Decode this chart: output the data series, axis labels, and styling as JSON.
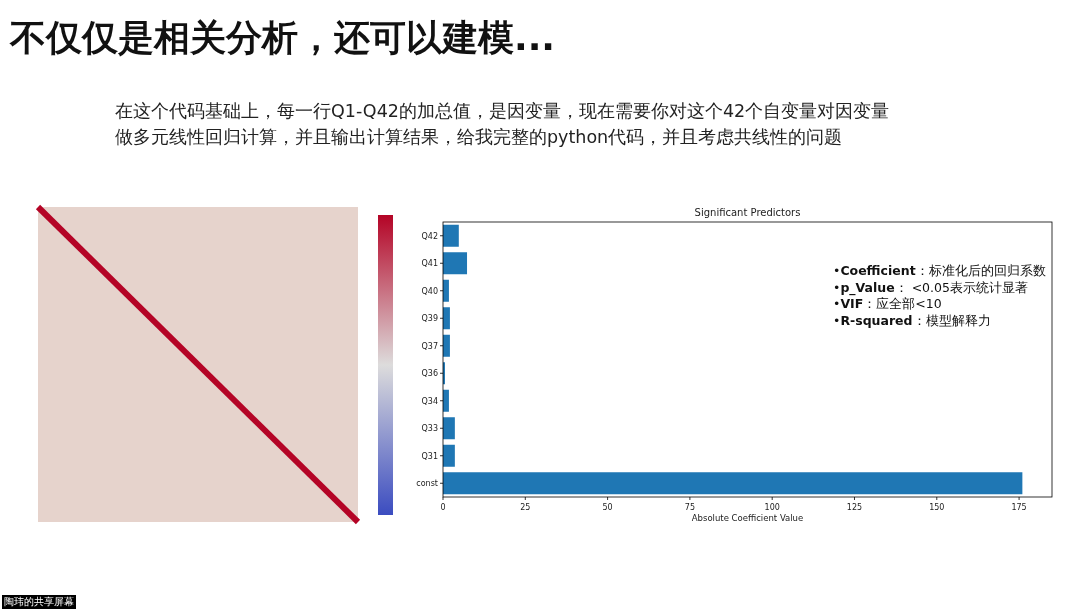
{
  "chart_data": [
    {
      "type": "other",
      "title": "不仅仅是相关分析，还可以建模...",
      "subtitle": "在这个代码基础上，每一行Q1-Q42的加总值，是因变量，现在需要你对这个42个自变量对因变量做多元线性回归计算，并且输出计算结果，给我完整的python代码，并且考虑共线性的问题",
      "annotations": [
        "陶玮的共享屏幕"
      ]
    },
    {
      "type": "bar",
      "orientation": "horizontal",
      "title": "Significant Predictors",
      "xlabel": "Absolute Coefficient Value",
      "categories": [
        "Q42",
        "Q41",
        "Q40",
        "Q39",
        "Q37",
        "Q36",
        "Q34",
        "Q33",
        "Q31",
        "const"
      ],
      "values": [
        4.8,
        7.3,
        1.8,
        2.1,
        2.1,
        0.6,
        1.8,
        3.6,
        3.6,
        176
      ],
      "color": "#1f77b4",
      "xlim": [
        0,
        185
      ],
      "xticks": [
        0,
        25,
        50,
        75,
        100,
        125,
        150,
        175
      ],
      "annotations": [
        "•**Coefficient**：标准化后的回归系数",
        "•**p_Value**： <0.05表示统计显著",
        "•**VIF**：应全部<10",
        "•**R-squared**：模型解释力"
      ]
    }
  ]
}
